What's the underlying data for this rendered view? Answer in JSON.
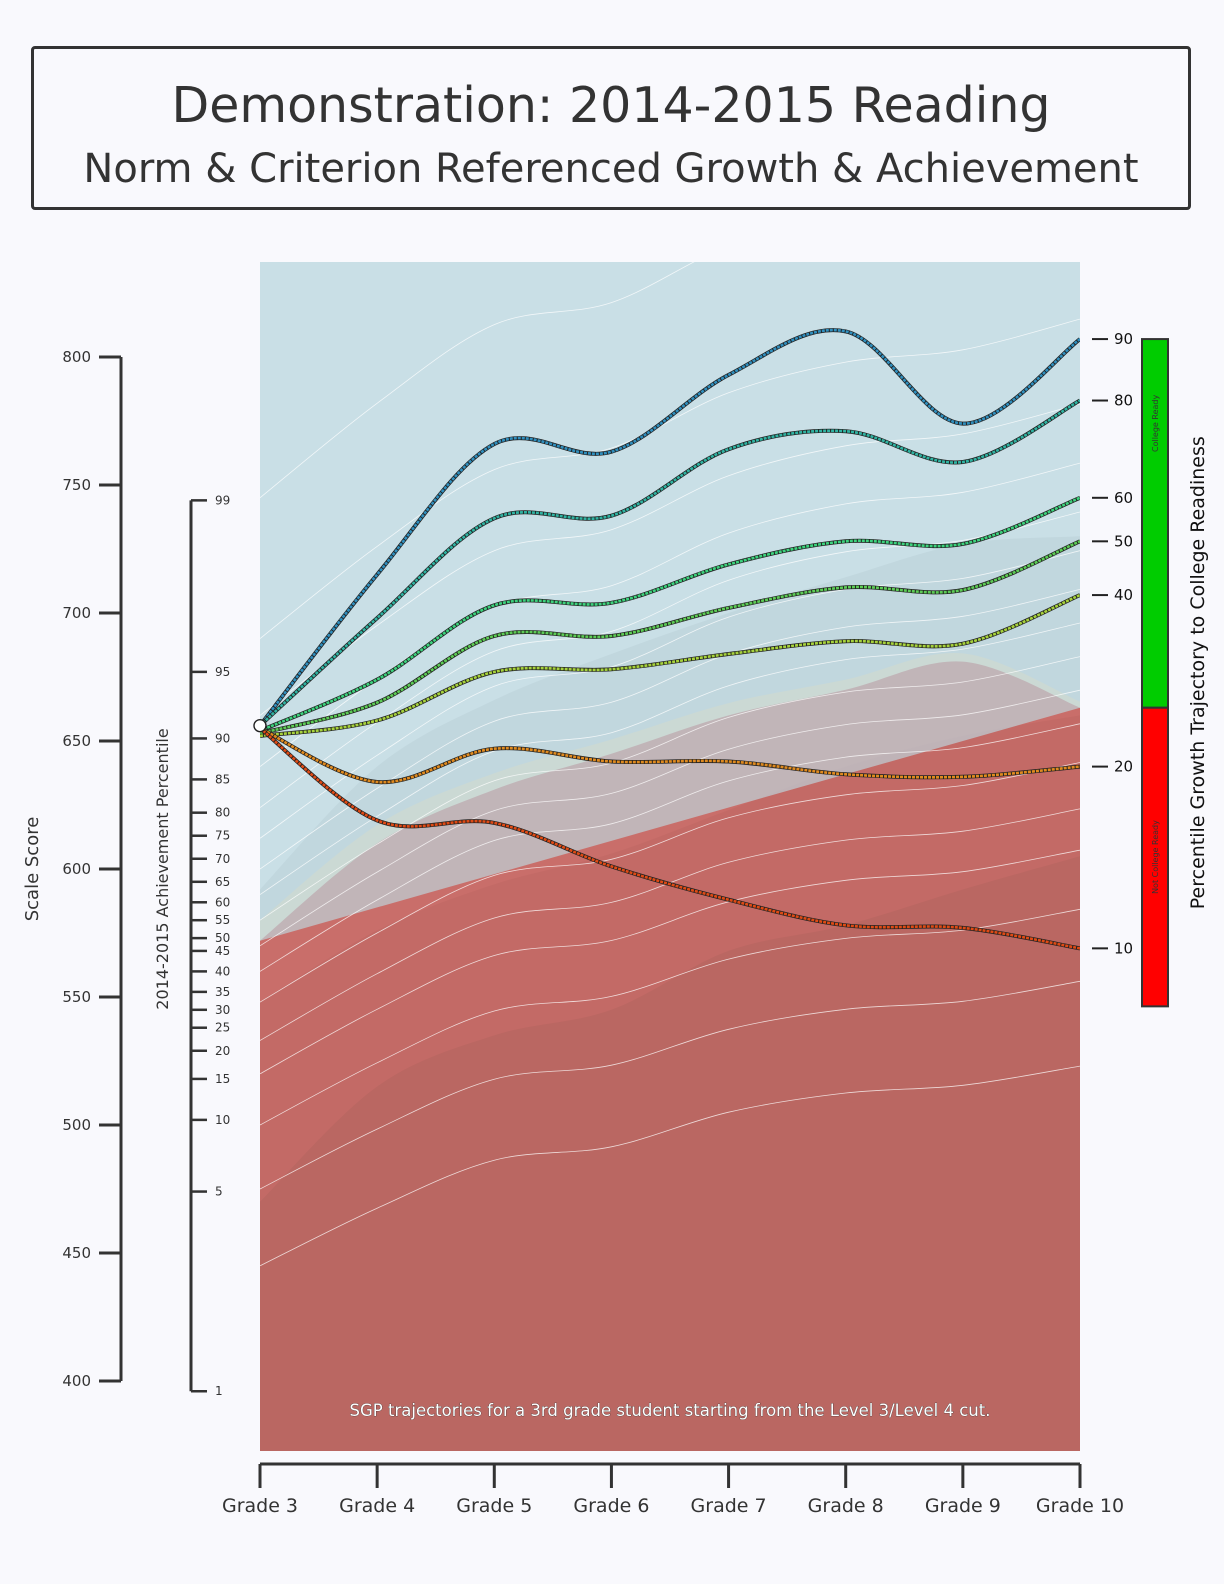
{
  "header": {
    "title": "Demonstration: 2014-2015 Reading",
    "subtitle": "Norm & Criterion Referenced Growth & Achievement"
  },
  "chart_data": {
    "type": "line",
    "title": "Demonstration: 2014-2015 Reading",
    "subtitle": "Norm & Criterion Referenced Growth & Achievement",
    "x": [
      "Grade 3",
      "Grade 4",
      "Grade 5",
      "Grade 6",
      "Grade 7",
      "Grade 8",
      "Grade 9",
      "Grade 10"
    ],
    "ylabel": "Scale Score",
    "ylim": [
      400,
      800
    ],
    "yticks": [
      400,
      450,
      500,
      550,
      600,
      650,
      700,
      750,
      800
    ],
    "percentile_axis": {
      "label": "2014-2015 Achievement Percentile",
      "ticks": [
        {
          "label": "1",
          "score": 396
        },
        {
          "label": "5",
          "score": 474
        },
        {
          "label": "10",
          "score": 502
        },
        {
          "label": "15",
          "score": 518
        },
        {
          "label": "20",
          "score": 529
        },
        {
          "label": "25",
          "score": 538
        },
        {
          "label": "30",
          "score": 545
        },
        {
          "label": "35",
          "score": 552
        },
        {
          "label": "40",
          "score": 560
        },
        {
          "label": "45",
          "score": 568
        },
        {
          "label": "50",
          "score": 573
        },
        {
          "label": "55",
          "score": 580
        },
        {
          "label": "60",
          "score": 587
        },
        {
          "label": "65",
          "score": 595
        },
        {
          "label": "70",
          "score": 604
        },
        {
          "label": "75",
          "score": 613
        },
        {
          "label": "80",
          "score": 622
        },
        {
          "label": "85",
          "score": 635
        },
        {
          "label": "90",
          "score": 651
        },
        {
          "label": "95",
          "score": 677
        },
        {
          "label": "99",
          "score": 744
        }
      ]
    },
    "right_axis": {
      "label": "Percentile Growth Trajectory to College Readiness",
      "bar_segments": [
        {
          "label": "College Ready",
          "color": "#00cc00"
        },
        {
          "label": "Not College Ready",
          "color": "#ff0000"
        }
      ],
      "ready_cut_score": 663
    },
    "start_point": {
      "x": "Grade 3",
      "y": 656
    },
    "series": [
      {
        "name": "90",
        "color": "#2f8fbe",
        "values": [
          656,
          715,
          766,
          763,
          793,
          810,
          774,
          807
        ]
      },
      {
        "name": "80",
        "color": "#2fb3a2",
        "values": [
          656,
          698,
          737,
          738,
          764,
          771,
          759,
          783
        ]
      },
      {
        "name": "60",
        "color": "#3cd27d",
        "values": [
          654,
          674,
          703,
          704,
          719,
          728,
          727,
          745
        ]
      },
      {
        "name": "50",
        "color": "#5ccc55",
        "values": [
          653,
          665,
          691,
          691,
          702,
          710,
          709,
          728
        ]
      },
      {
        "name": "40",
        "color": "#a6d23b",
        "values": [
          652,
          658,
          677,
          678,
          684,
          689,
          688,
          707
        ]
      },
      {
        "name": "20",
        "color": "#e08a1e",
        "values": [
          655,
          634,
          647,
          642,
          642,
          637,
          636,
          640
        ]
      },
      {
        "name": "10",
        "color": "#e04a14",
        "values": [
          655,
          619,
          618,
          601,
          588,
          578,
          577,
          569
        ]
      }
    ],
    "annotation": "SGP trajectories for a 3rd grade student starting from the Level 3/Level 4 cut.",
    "colors": {
      "background": "#f9f9fd",
      "ready_region": "#c9dfe6",
      "not_ready_region": "#c96e6a",
      "cut_band": "#ede9c3"
    }
  }
}
